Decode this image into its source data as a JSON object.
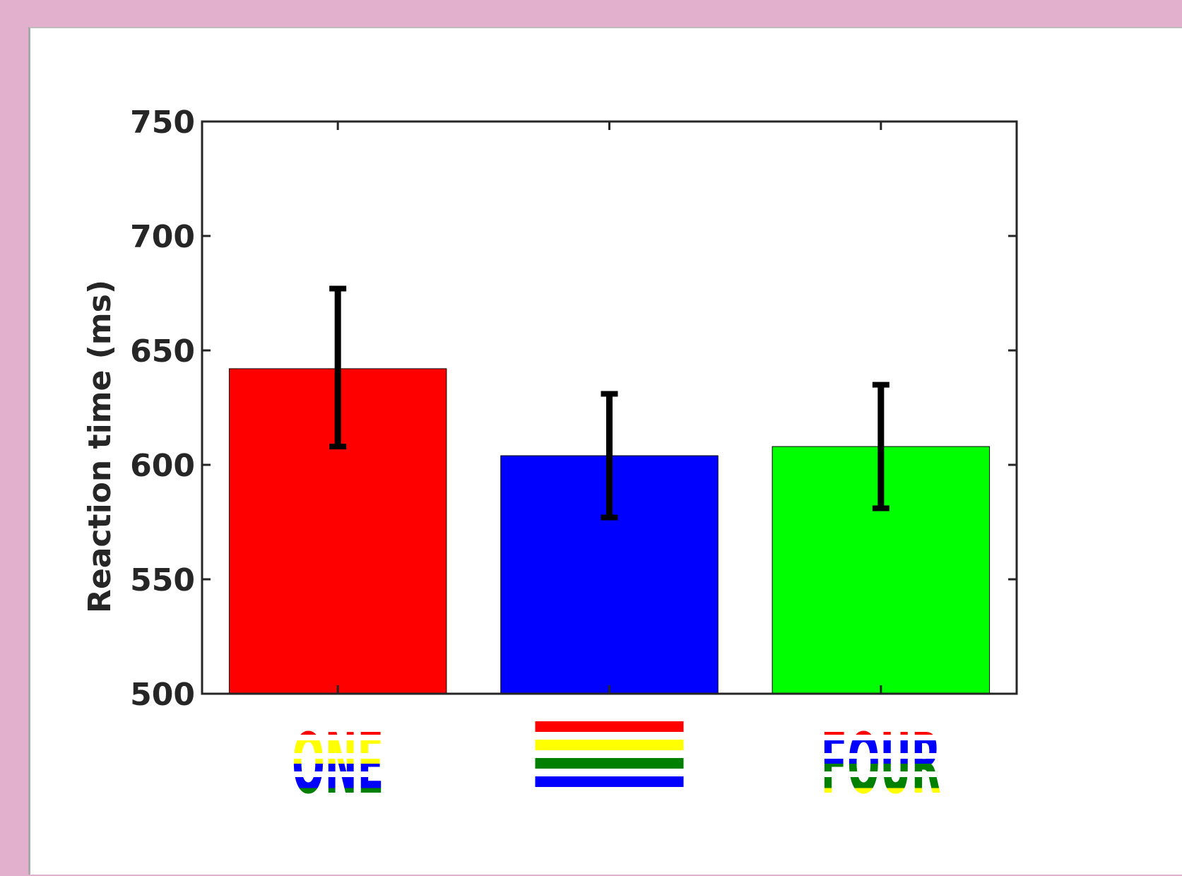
{
  "chart_data": {
    "type": "bar",
    "title": "",
    "xlabel": "",
    "ylabel": "Reaction time (ms)",
    "ylim": [
      500,
      750
    ],
    "yticks": [
      500,
      550,
      600,
      650,
      700,
      750
    ],
    "grid": false,
    "categories": [
      "ONE",
      "",
      "FOUR"
    ],
    "category_colors": [
      [
        "#ff0000",
        "#ffff00",
        "#0000ff",
        "#008000"
      ],
      [
        "#ff0000",
        "#ffff00",
        "#008000",
        "#0000ff"
      ],
      [
        "#ff0000",
        "#0000ff",
        "#008000",
        "#ffff00"
      ]
    ],
    "values": [
      642,
      604,
      608
    ],
    "error_low": [
      608,
      577,
      581
    ],
    "error_high": [
      677,
      631,
      635
    ],
    "bar_colors": [
      "#ff0000",
      "#0000ff",
      "#00ff00"
    ]
  }
}
